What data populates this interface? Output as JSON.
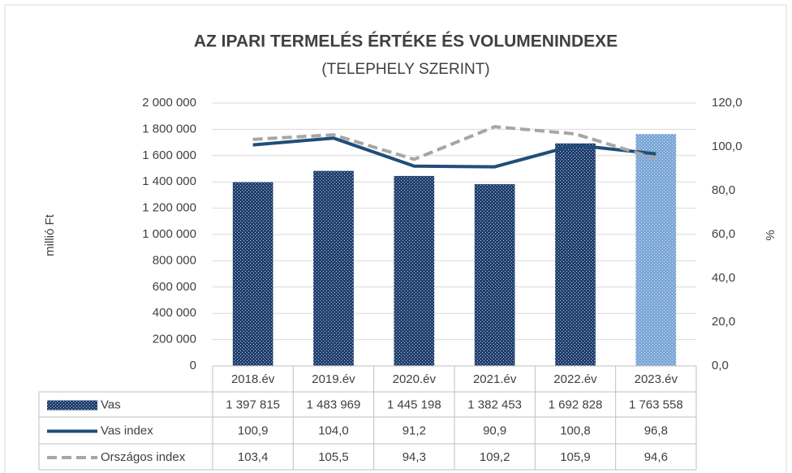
{
  "chart_data": {
    "type": "bar_line_table",
    "title": "AZ IPARI TERMELÉS ÉRTÉKE ÉS VOLUMENINDEXE",
    "subtitle": "(TELEPHELY SZERINT)",
    "y_label": "millió Ft",
    "y2_label": "%",
    "categories": [
      "2018.év",
      "2019.év",
      "2020.év",
      "2021.év",
      "2022.év",
      "2023.év"
    ],
    "ylim": [
      0,
      2000000
    ],
    "yticks": [
      0,
      {
        "value": 200000,
        "label": "200 000"
      },
      {
        "value": 400000,
        "label": "400 000"
      },
      {
        "value": 600000,
        "label": "600 000"
      },
      {
        "value": 800000,
        "label": "800 000"
      },
      {
        "value": 1000000,
        "label": "1 000 000"
      },
      {
        "value": 1200000,
        "label": "1 200 000"
      },
      {
        "value": 1400000,
        "label": "1 400 000"
      },
      {
        "value": 1600000,
        "label": "1 600 000"
      },
      {
        "value": 1800000,
        "label": "1 800 000"
      },
      {
        "value": 2000000,
        "label": "2 000 000"
      }
    ],
    "y2lim": [
      0,
      120
    ],
    "y2ticks": [
      {
        "value": 0,
        "label": "0,0"
      },
      {
        "value": 20,
        "label": "20,0"
      },
      {
        "value": 40,
        "label": "40,0"
      },
      {
        "value": 60,
        "label": "60,0"
      },
      {
        "value": 80,
        "label": "80,0"
      },
      {
        "value": 100,
        "label": "100,0"
      },
      {
        "value": 120,
        "label": "120,0"
      }
    ],
    "grid": true,
    "series": [
      {
        "name": "Vas",
        "type": "bar",
        "color": "#1f3f6e",
        "colors": [
          "#1f3f6e",
          "#1f3f6e",
          "#1f3f6e",
          "#1f3f6e",
          "#1f3f6e",
          "#7aa6d6"
        ],
        "values": [
          1397815,
          1483969,
          1445198,
          1382453,
          1692828,
          1763558
        ],
        "value_labels": [
          "1 397 815",
          "1 483 969",
          "1 445 198",
          "1 382 453",
          "1 692 828",
          "1 763 558"
        ]
      },
      {
        "name": "Vas index",
        "type": "line",
        "axis": "y2",
        "color": "#1f4e79",
        "dashed": false,
        "values": [
          100.9,
          104.0,
          91.2,
          90.9,
          100.8,
          96.8
        ],
        "value_labels": [
          "100,9",
          "104,0",
          "91,2",
          "90,9",
          "100,8",
          "96,8"
        ]
      },
      {
        "name": "Országos index",
        "type": "line",
        "axis": "y2",
        "color": "#a6a6a6",
        "dashed": true,
        "values": [
          103.4,
          105.5,
          94.3,
          109.2,
          105.9,
          94.6
        ],
        "value_labels": [
          "103,4",
          "105,5",
          "94,3",
          "109,2",
          "105,9",
          "94,6"
        ]
      }
    ]
  }
}
